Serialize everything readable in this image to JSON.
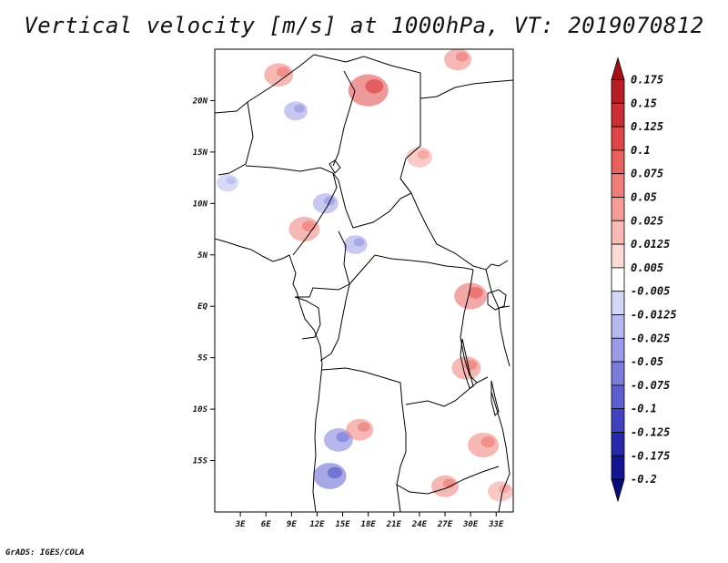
{
  "chart_data": {
    "type": "heatmap",
    "title": "Vertical velocity [m/s] at 1000hPa, VT: 2019070812",
    "variable": "Vertical velocity",
    "units": "m/s",
    "level": "1000hPa",
    "valid_time": "2019070812",
    "x_axis": {
      "label": "",
      "range_deg": [
        0,
        35
      ],
      "ticks": [
        3,
        6,
        9,
        12,
        15,
        18,
        21,
        24,
        27,
        30,
        33
      ],
      "tick_labels": [
        "3E",
        "6E",
        "9E",
        "12E",
        "15E",
        "18E",
        "21E",
        "24E",
        "27E",
        "30E",
        "33E"
      ]
    },
    "y_axis": {
      "label": "",
      "range_deg": [
        -20,
        25
      ],
      "ticks": [
        20,
        15,
        10,
        5,
        0,
        -5,
        -10,
        -15
      ],
      "tick_labels": [
        "20N",
        "15N",
        "10N",
        "5N",
        "EQ",
        "5S",
        "10S",
        "15S"
      ]
    },
    "colorbar": {
      "position": "right",
      "extend": "both",
      "levels": [
        "0.175",
        "0.15",
        "0.125",
        "0.1",
        "0.075",
        "0.05",
        "0.025",
        "0.0125",
        "0.005",
        "-0.005",
        "-0.0125",
        "-0.025",
        "-0.05",
        "-0.075",
        "-0.1",
        "-0.125",
        "-0.175",
        "-0.2"
      ],
      "colors": [
        "#a50f15",
        "#b81e24",
        "#cb2f33",
        "#de4546",
        "#e8615e",
        "#ef7e78",
        "#f49c95",
        "#f9bbb4",
        "#fcdad5",
        "#ffffff",
        "#d6d6f8",
        "#b8b8f0",
        "#9a9ae6",
        "#7c7cdb",
        "#5e5ed0",
        "#4242c0",
        "#2828ac",
        "#141492",
        "#0a0a7a"
      ]
    },
    "patches": [
      {
        "lon": 7.5,
        "lat": 22.5,
        "value": 0.06
      },
      {
        "lon": 18.0,
        "lat": 21.0,
        "value": 0.12
      },
      {
        "lon": 9.5,
        "lat": 19.0,
        "value": -0.03
      },
      {
        "lon": 28.5,
        "lat": 24.0,
        "value": 0.05
      },
      {
        "lon": 24.0,
        "lat": 14.5,
        "value": 0.04
      },
      {
        "lon": 10.5,
        "lat": 7.5,
        "value": 0.07
      },
      {
        "lon": 13.0,
        "lat": 10.0,
        "value": -0.04
      },
      {
        "lon": 16.5,
        "lat": 6.0,
        "value": -0.03
      },
      {
        "lon": 30.0,
        "lat": 1.0,
        "value": 0.08
      },
      {
        "lon": 29.5,
        "lat": -6.0,
        "value": 0.06
      },
      {
        "lon": 14.5,
        "lat": -13.0,
        "value": -0.06
      },
      {
        "lon": 17.0,
        "lat": -12.0,
        "value": 0.05
      },
      {
        "lon": 13.5,
        "lat": -16.5,
        "value": -0.08
      },
      {
        "lon": 31.5,
        "lat": -13.5,
        "value": 0.07
      },
      {
        "lon": 33.5,
        "lat": -18.0,
        "value": 0.04
      },
      {
        "lon": 1.5,
        "lat": 12.0,
        "value": -0.02
      },
      {
        "lon": 27.0,
        "lat": -17.5,
        "value": 0.05
      }
    ]
  },
  "footer": "GrADS: IGES/COLA"
}
